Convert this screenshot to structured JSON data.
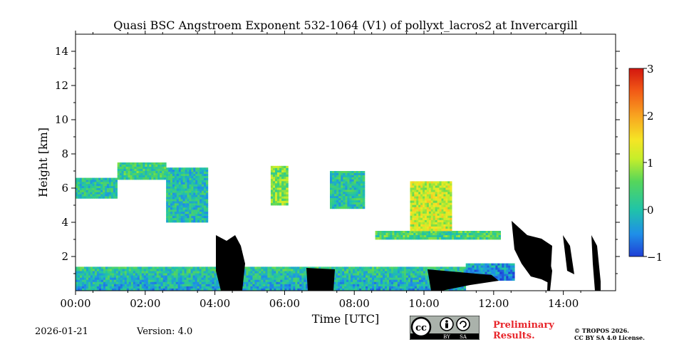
{
  "chart_data": {
    "type": "heatmap",
    "title": "Quasi BSC Angstroem Exponent 532-1064 (V1) of pollyxt_lacros2 at Invercargill",
    "xlabel": "Time [UTC]",
    "ylabel": "Height [km]",
    "xlim_hours": [
      0,
      15.5
    ],
    "ylim_km": [
      0,
      15
    ],
    "x_ticks": [
      {
        "value": 0,
        "label": "00:00"
      },
      {
        "value": 2,
        "label": "02:00"
      },
      {
        "value": 4,
        "label": "04:00"
      },
      {
        "value": 6,
        "label": "06:00"
      },
      {
        "value": 8,
        "label": "08:00"
      },
      {
        "value": 10,
        "label": "10:00"
      },
      {
        "value": 12,
        "label": "12:00"
      },
      {
        "value": 14,
        "label": "14:00"
      }
    ],
    "y_ticks": [
      {
        "value": 2,
        "label": "2"
      },
      {
        "value": 4,
        "label": "4"
      },
      {
        "value": 6,
        "label": "6"
      },
      {
        "value": 8,
        "label": "8"
      },
      {
        "value": 10,
        "label": "10"
      },
      {
        "value": 12,
        "label": "12"
      },
      {
        "value": 14,
        "label": "14"
      }
    ],
    "colorbar": {
      "min": -1,
      "max": 3,
      "ticks": [
        {
          "value": 3,
          "label": "3"
        },
        {
          "value": 2,
          "label": "2"
        },
        {
          "value": 1,
          "label": "1"
        },
        {
          "value": 0,
          "label": "0"
        },
        {
          "value": -1,
          "label": "−1"
        }
      ]
    },
    "regions": [
      {
        "name": "boundary-layer",
        "t0": 0.0,
        "t1": 11.2,
        "h0": 0.0,
        "h1": 1.4,
        "value": 0.2
      },
      {
        "name": "boundary-layer-late",
        "t0": 11.2,
        "t1": 12.6,
        "h0": 0.6,
        "h1": 1.6,
        "value": -0.3
      },
      {
        "name": "morning-cloud",
        "t0": 0.0,
        "t1": 1.2,
        "h0": 5.4,
        "h1": 6.6,
        "value": 0.1
      },
      {
        "name": "aerosol-layer",
        "t0": 1.2,
        "t1": 2.6,
        "h0": 6.5,
        "h1": 7.5,
        "value": 0.3
      },
      {
        "name": "aerosol-layer-2",
        "t0": 2.6,
        "t1": 3.8,
        "h0": 4.0,
        "h1": 7.2,
        "value": 0.0
      },
      {
        "name": "cirrus-06",
        "t0": 5.6,
        "t1": 6.1,
        "h0": 5.0,
        "h1": 7.3,
        "value": 0.7
      },
      {
        "name": "cirrus-0730",
        "t0": 7.3,
        "t1": 8.3,
        "h0": 4.8,
        "h1": 7.0,
        "value": 0.1
      },
      {
        "name": "thin-layer-09",
        "t0": 8.6,
        "t1": 12.2,
        "h0": 3.0,
        "h1": 3.5,
        "value": 0.4
      },
      {
        "name": "layer-10",
        "t0": 9.6,
        "t1": 10.8,
        "h0": 3.5,
        "h1": 6.4,
        "value": 1.2
      }
    ]
  },
  "footer": {
    "date": "2026-01-21",
    "version": "Version: 4.0",
    "preliminary_line1": "Preliminary",
    "preliminary_line2": "Results.",
    "copyright_line1": "© TROPOS 2026.",
    "copyright_line2": "CC BY SA 4.0 License.",
    "cc_by": "BY",
    "cc_sa": "SA",
    "cc_logo": "cc"
  },
  "colors": {
    "text": "#000000",
    "preliminary": "#e8262b",
    "missing": "#000000"
  }
}
